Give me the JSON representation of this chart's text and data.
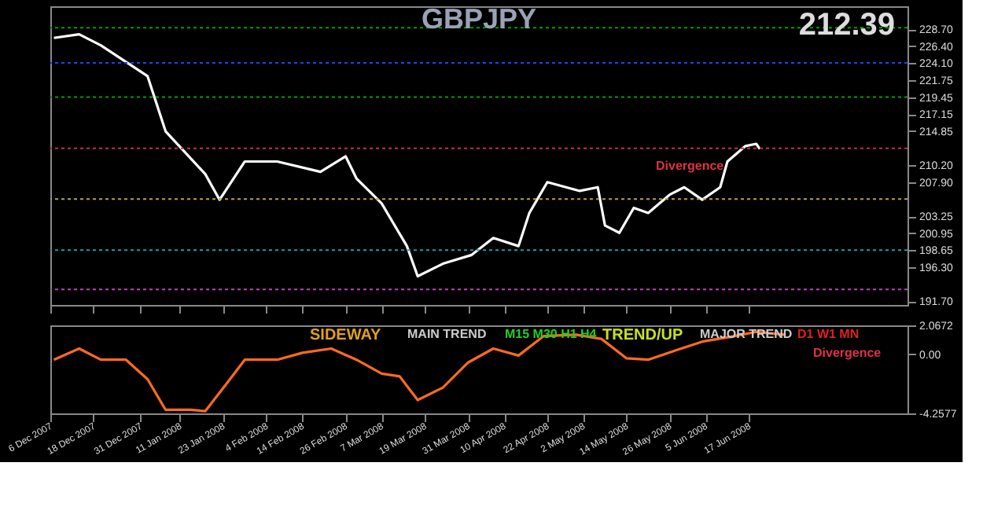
{
  "chart_data": [
    {
      "type": "line",
      "title": "GBPJPY",
      "x": [
        "2007-12-07",
        "2007-12-14",
        "2007-12-20",
        "2008-01-02",
        "2008-01-07",
        "2008-01-18",
        "2008-01-22",
        "2008-01-29",
        "2008-02-07",
        "2008-02-19",
        "2008-02-26",
        "2008-02-29",
        "2008-03-07",
        "2008-03-14",
        "2008-03-17",
        "2008-03-24",
        "2008-04-01",
        "2008-04-07",
        "2008-04-14",
        "2008-04-17",
        "2008-04-22",
        "2008-05-01",
        "2008-05-06",
        "2008-05-08",
        "2008-05-12",
        "2008-05-16",
        "2008-05-20",
        "2008-05-26",
        "2008-05-30",
        "2008-06-04",
        "2008-06-09",
        "2008-06-11",
        "2008-06-16",
        "2008-06-19",
        "2008-06-20"
      ],
      "series": [
        {
          "color": "#ffffff",
          "values": [
            227.5,
            228.0,
            226.5,
            222.3,
            214.8,
            209.0,
            205.5,
            210.7,
            210.7,
            209.3,
            211.4,
            208.4,
            205.0,
            199.2,
            195.1,
            196.8,
            198.0,
            200.3,
            199.2,
            203.7,
            207.9,
            206.7,
            207.2,
            202.0,
            201.0,
            204.4,
            203.7,
            206.2,
            207.2,
            205.5,
            207.2,
            210.7,
            212.8,
            213.1,
            212.39
          ]
        }
      ],
      "xlim": [
        "2007-12-06",
        "2008-07-31"
      ],
      "ylim": [
        191.2,
        231.8
      ],
      "xticks": [
        "2007-12-06",
        "2007-12-18",
        "2007-12-31",
        "2008-01-11",
        "2008-01-23",
        "2008-02-04",
        "2008-02-14",
        "2008-02-26",
        "2008-03-07",
        "2008-03-19",
        "2008-03-31",
        "2008-04-10",
        "2008-04-22",
        "2008-05-02",
        "2008-05-14",
        "2008-05-26",
        "2008-06-05",
        "2008-06-17"
      ],
      "yticks": [
        {
          "value": 191.7,
          "label": "191.70"
        },
        {
          "value": 196.3,
          "label": "196.30"
        },
        198.65,
        200.95,
        203.25,
        {
          "value": 207.9,
          "label": "207.90"
        },
        {
          "value": 210.2,
          "label": "210.20"
        },
        214.85,
        217.15,
        219.45,
        221.75,
        {
          "value": 224.1,
          "label": "224.10"
        },
        {
          "value": 226.4,
          "label": "226.40"
        },
        {
          "value": 228.7,
          "label": "228.70"
        }
      ],
      "tick_labels": "y",
      "ref_lines": [
        {
          "axis": "y",
          "value": 228.9,
          "color": "#00a000",
          "line_style": "dotted"
        },
        {
          "axis": "y",
          "value": 224.1,
          "color": "#2040ff",
          "line_style": "dotted"
        },
        {
          "axis": "y",
          "value": 219.45,
          "color": "#00a000",
          "line_style": "dotted"
        },
        {
          "axis": "y",
          "value": 212.5,
          "color": "#c03050",
          "line_style": "dotted"
        },
        {
          "axis": "y",
          "value": 205.6,
          "color": "#c0a040",
          "line_style": "dotted"
        },
        {
          "axis": "y",
          "value": 198.65,
          "color": "#20a0a0",
          "line_style": "dotted"
        },
        {
          "axis": "y",
          "value": 193.3,
          "color": "#c040c0",
          "line_style": "dotted"
        }
      ],
      "annotations": [
        "212.39",
        "Divergence"
      ],
      "grid": false,
      "line_style": "solid",
      "marker": "none"
    },
    {
      "type": "line",
      "x": [
        "2007-12-07",
        "2007-12-14",
        "2007-12-20",
        "2007-12-27",
        "2008-01-02",
        "2008-01-07",
        "2008-01-14",
        "2008-01-18",
        "2008-01-24",
        "2008-01-29",
        "2008-02-07",
        "2008-02-14",
        "2008-02-22",
        "2008-02-29",
        "2008-03-07",
        "2008-03-12",
        "2008-03-17",
        "2008-03-24",
        "2008-03-31",
        "2008-04-07",
        "2008-04-14",
        "2008-04-21",
        "2008-04-30",
        "2008-05-07",
        "2008-05-14",
        "2008-05-20",
        "2008-05-28",
        "2008-06-04",
        "2008-06-13",
        "2008-06-19",
        "2008-06-27"
      ],
      "series": [
        {
          "color": "#ff6a20",
          "values": [
            -0.4,
            0.4,
            -0.4,
            -0.4,
            -1.8,
            -4.0,
            -4.0,
            -4.1,
            -2.1,
            -0.4,
            -0.4,
            0.1,
            0.4,
            -0.4,
            -1.4,
            -1.6,
            -3.3,
            -2.4,
            -0.6,
            0.4,
            -0.1,
            1.3,
            1.4,
            1.1,
            -0.3,
            -0.4,
            0.3,
            0.9,
            1.3,
            1.6,
            1.4
          ]
        }
      ],
      "xlim": [
        "2007-12-06",
        "2008-07-31"
      ],
      "ylim": [
        -4.2577,
        2.0672
      ],
      "yticks": [
        -4.2577,
        {
          "value": 0,
          "label": "0.00"
        },
        2.0672
      ],
      "xticks": [
        {
          "value": "2007-12-06",
          "label": "6 Dec 2007"
        },
        {
          "value": "2007-12-18",
          "label": "18 Dec 2007"
        },
        {
          "value": "2007-12-31",
          "label": "31 Dec 2007"
        },
        {
          "value": "2008-01-11",
          "label": "11 Jan 2008"
        },
        {
          "value": "2008-01-23",
          "label": "23 Jan 2008"
        },
        {
          "value": "2008-02-04",
          "label": "4 Feb 2008"
        },
        {
          "value": "2008-02-14",
          "label": "14 Feb 2008"
        },
        {
          "value": "2008-02-26",
          "label": "26 Feb 2008"
        },
        {
          "value": "2008-03-07",
          "label": "7 Mar 2008"
        },
        {
          "value": "2008-03-19",
          "label": "19 Mar 2008"
        },
        {
          "value": "2008-03-31",
          "label": "31 Mar 2008"
        },
        {
          "value": "2008-04-10",
          "label": "10 Apr 2008"
        },
        {
          "value": "2008-04-22",
          "label": "22 Apr 2008"
        },
        {
          "value": "2008-05-02",
          "label": "2 May 2008"
        },
        {
          "value": "2008-05-14",
          "label": "14 May 2008"
        },
        {
          "value": "2008-05-26",
          "label": "26 May 2008"
        },
        {
          "value": "2008-06-05",
          "label": "5 Jun 2008"
        },
        {
          "value": "2008-06-17",
          "label": "17 Jun 2008"
        }
      ],
      "annotations": [
        "SIDEWAY",
        "MAIN TREND",
        "M15 M30 H1 H4",
        "TREND/UP",
        "MAJOR TREND",
        "D1 W1 MN",
        "Divergence"
      ],
      "grid": false,
      "line_style": "solid",
      "marker": "none"
    }
  ]
}
